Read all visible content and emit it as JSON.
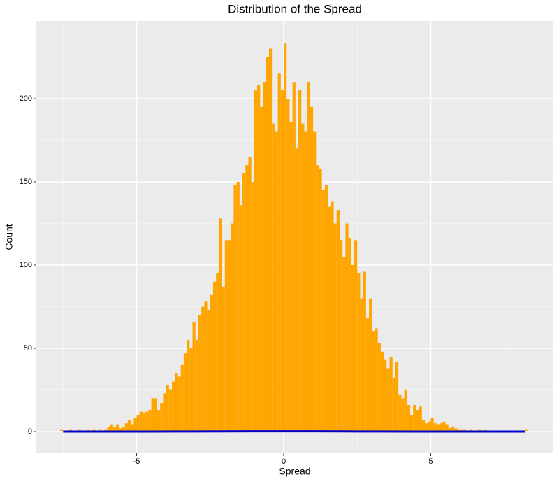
{
  "chart_data": {
    "type": "histogram",
    "title": "Distribution of the Spread",
    "x_label": "Spread",
    "y_label": "Count",
    "bins": [
      -7.6,
      -7.5,
      -7.4,
      -7.3,
      -7.2,
      -7.1,
      -7,
      -6.9,
      -6.8,
      -6.7,
      -6.6,
      -6.5,
      -6.4,
      -6.3,
      -6.2,
      -6.1,
      -6,
      -5.9,
      -5.8,
      -5.7,
      -5.6,
      -5.5,
      -5.4,
      -5.3,
      -5.2,
      -5.1,
      -5,
      -4.9,
      -4.8,
      -4.7,
      -4.6,
      -4.5,
      -4.4,
      -4.3,
      -4.2,
      -4.1,
      -4,
      -3.9,
      -3.8,
      -3.7,
      -3.6,
      -3.5,
      -3.4,
      -3.3,
      -3.2,
      -3.1,
      -3,
      -2.9,
      -2.8,
      -2.7,
      -2.6,
      -2.5,
      -2.4,
      -2.3,
      -2.2,
      -2.1,
      -2,
      -1.9,
      -1.8,
      -1.7,
      -1.6,
      -1.5,
      -1.4,
      -1.3,
      -1.2,
      -1.1,
      -1,
      -0.9,
      -0.8,
      -0.7,
      -0.6,
      -0.5,
      -0.4,
      -0.3,
      -0.2,
      -0.1,
      0,
      0.1,
      0.2,
      0.3,
      0.4,
      0.5,
      0.6,
      0.7,
      0.8,
      0.9,
      1,
      1.1,
      1.2,
      1.3,
      1.4,
      1.5,
      1.6,
      1.7,
      1.8,
      1.9,
      2,
      2.1,
      2.2,
      2.3,
      2.4,
      2.5,
      2.6,
      2.7,
      2.8,
      2.9,
      3,
      3.1,
      3.2,
      3.3,
      3.4,
      3.5,
      3.6,
      3.7,
      3.8,
      3.9,
      4,
      4.1,
      4.2,
      4.3,
      4.4,
      4.5,
      4.6,
      4.7,
      4.8,
      4.9,
      5,
      5.1,
      5.2,
      5.3,
      5.4,
      5.5,
      5.6,
      5.7,
      5.8,
      5.9,
      6,
      6.1,
      6.2,
      6.3,
      6.4,
      6.5,
      6.6,
      6.7,
      6.8,
      6.9,
      7,
      7.1,
      7.2,
      7.3,
      7.4,
      7.5,
      7.6,
      7.7,
      7.8,
      7.9,
      8,
      8.1,
      8.2,
      8.3
    ],
    "values": [
      1,
      0,
      0,
      1,
      0,
      0,
      1,
      0,
      0,
      1,
      0,
      1,
      0,
      1,
      0,
      1,
      3,
      4,
      3,
      4,
      2,
      3,
      5,
      7,
      4,
      8,
      10,
      12,
      11,
      12,
      13,
      20,
      20,
      13,
      17,
      23,
      28,
      25,
      30,
      35,
      33,
      40,
      47,
      55,
      50,
      66,
      55,
      70,
      75,
      78,
      73,
      82,
      90,
      95,
      128,
      87,
      115,
      115,
      125,
      148,
      150,
      136,
      155,
      160,
      165,
      150,
      205,
      208,
      195,
      210,
      225,
      230,
      185,
      180,
      215,
      205,
      233,
      200,
      186,
      210,
      170,
      205,
      185,
      180,
      210,
      195,
      180,
      160,
      158,
      145,
      148,
      135,
      138,
      125,
      133,
      115,
      105,
      125,
      116,
      100,
      115,
      95,
      80,
      96,
      68,
      80,
      60,
      62,
      53,
      48,
      43,
      38,
      45,
      32,
      42,
      22,
      20,
      25,
      16,
      10,
      16,
      13,
      15,
      7,
      5,
      6,
      8,
      5,
      4,
      5,
      6,
      4,
      2,
      3,
      2,
      1,
      1,
      1,
      0,
      1,
      0,
      0,
      1,
      0,
      1,
      0,
      0,
      0,
      0,
      0,
      0,
      0,
      0,
      0,
      0,
      0,
      0,
      0,
      1
    ],
    "color": "#ffa500",
    "density": {
      "x": [
        -7.5,
        -6,
        -4.5,
        -3,
        -2,
        -1,
        0,
        1,
        2,
        3,
        4.5,
        6,
        8.2
      ],
      "values": [
        0,
        0.003,
        0.02,
        0.07,
        0.12,
        0.17,
        0.19,
        0.17,
        0.12,
        0.07,
        0.02,
        0.003,
        0
      ],
      "color": "#0000cd"
    },
    "xlim": [
      -8.41,
      9.17
    ],
    "ylim": [
      -13,
      246.6
    ],
    "xticks": [
      -5,
      0,
      5
    ],
    "yticks": [
      0,
      50,
      100,
      150,
      200
    ],
    "x_minor_ticks": [
      -7.5,
      -2.5,
      2.5,
      7.5
    ],
    "y_minor_ticks": [
      25,
      75,
      125,
      175,
      225
    ],
    "grid": true
  }
}
